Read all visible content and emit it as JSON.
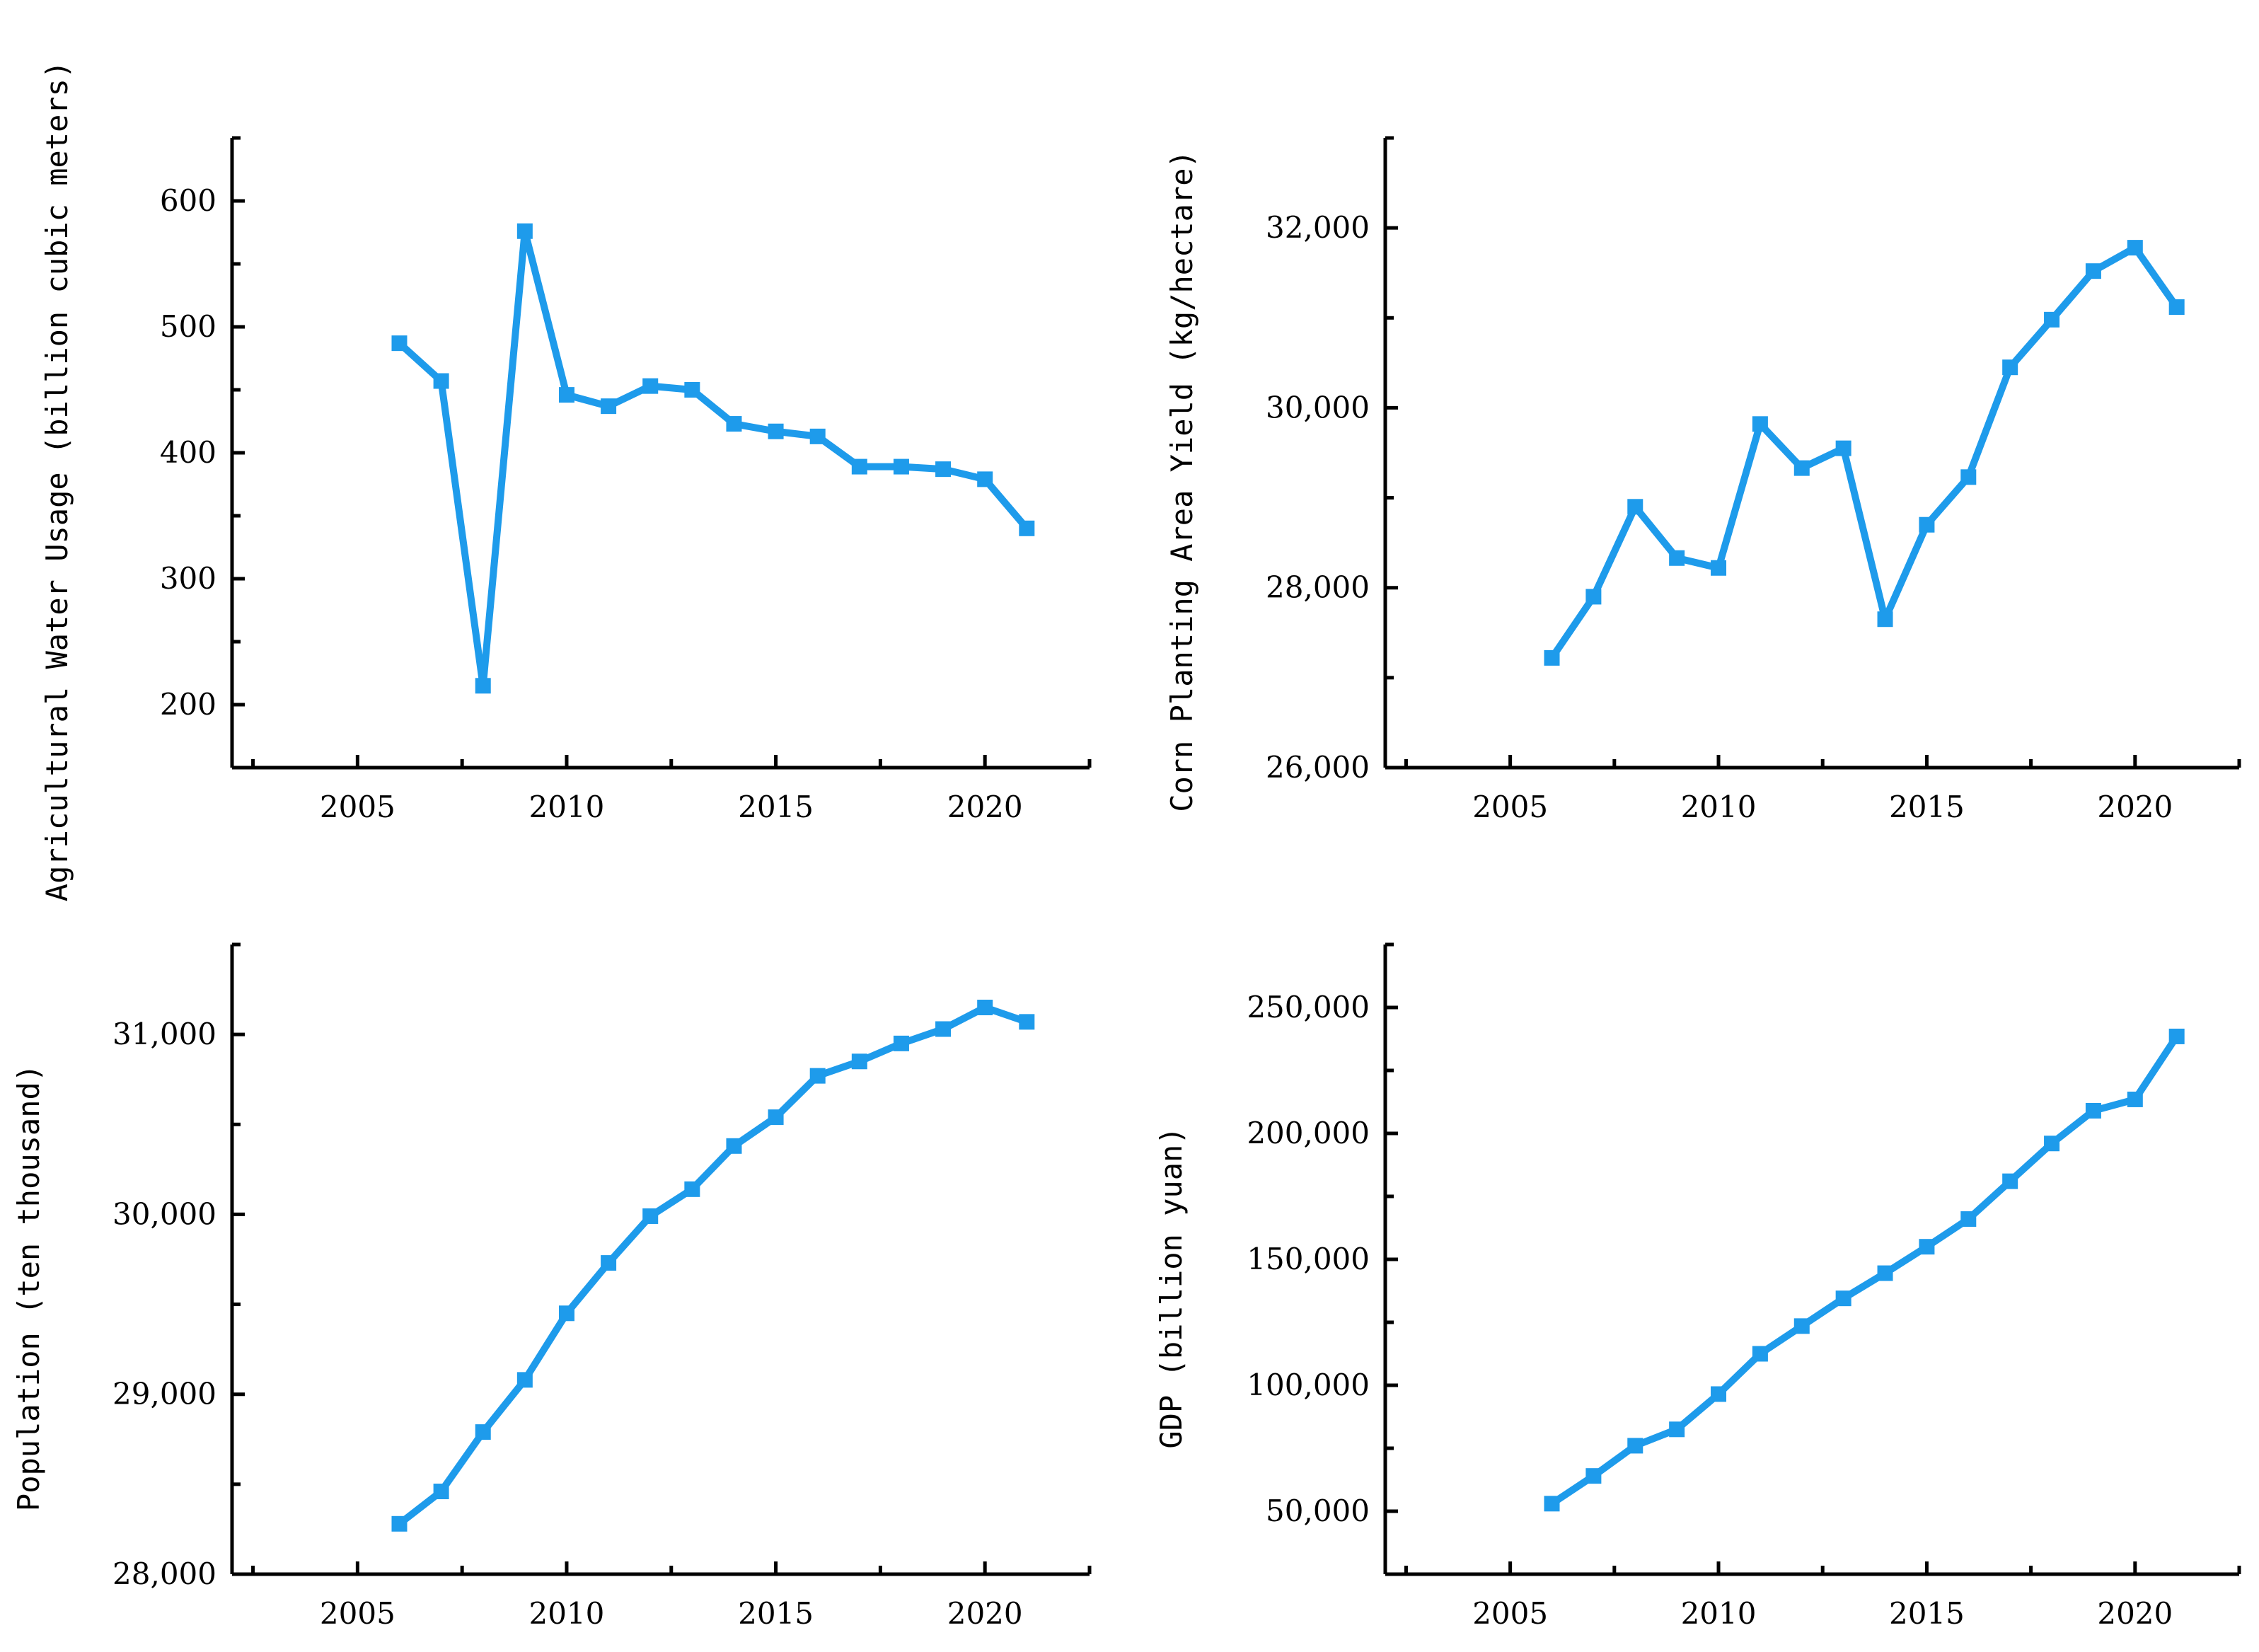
{
  "series_color": "#1E9BEB",
  "chart_data": [
    {
      "type": "line",
      "ylabel": "Agricultural Water Usage (billion cubic meters)",
      "xlabel": "",
      "xlim": [
        2002.0,
        2022.5
      ],
      "ylim": [
        150,
        650
      ],
      "x_ticks": [
        2005,
        2010,
        2015,
        2020
      ],
      "y_ticks": [
        200,
        300,
        400,
        500,
        600
      ],
      "y_tick_labels": [
        "200",
        "300",
        "400",
        "500",
        "600"
      ],
      "x": [
        2006,
        2007,
        2008,
        2009,
        2010,
        2011,
        2012,
        2013,
        2014,
        2015,
        2016,
        2017,
        2018,
        2019,
        2020,
        2021
      ],
      "series": [
        {
          "values": [
            487,
            457,
            215,
            576,
            446,
            437,
            453,
            450,
            423,
            417,
            413,
            389,
            389,
            387,
            379,
            340
          ]
        }
      ]
    },
    {
      "type": "line",
      "ylabel": "Corn Planting Area Yield (kg/hectare)",
      "xlabel": "",
      "xlim": [
        2002.0,
        2022.5
      ],
      "ylim": [
        26000,
        33000
      ],
      "x_ticks": [
        2005,
        2010,
        2015,
        2020
      ],
      "y_ticks": [
        26000,
        28000,
        30000,
        32000
      ],
      "y_tick_labels": [
        "26,000",
        "28,000",
        "30,000",
        "32,000"
      ],
      "x": [
        2006,
        2007,
        2008,
        2009,
        2010,
        2011,
        2012,
        2013,
        2014,
        2015,
        2016,
        2017,
        2018,
        2019,
        2020,
        2021
      ],
      "series": [
        {
          "values": [
            27220,
            27900,
            28900,
            28330,
            28220,
            29820,
            29330,
            29550,
            27650,
            28700,
            29230,
            30450,
            30980,
            31520,
            31780,
            31120
          ]
        }
      ]
    },
    {
      "type": "line",
      "ylabel": "Population (ten thousand)",
      "xlabel": "",
      "xlim": [
        2002.0,
        2022.5
      ],
      "ylim": [
        28000,
        31500
      ],
      "x_ticks": [
        2005,
        2010,
        2015,
        2020
      ],
      "y_ticks": [
        28000,
        29000,
        30000,
        31000
      ],
      "y_tick_labels": [
        "28,000",
        "29,000",
        "30,000",
        "31,000"
      ],
      "x": [
        2006,
        2007,
        2008,
        2009,
        2010,
        2011,
        2012,
        2013,
        2014,
        2015,
        2016,
        2017,
        2018,
        2019,
        2020,
        2021
      ],
      "series": [
        {
          "values": [
            28280,
            28460,
            28790,
            29080,
            29450,
            29730,
            29990,
            30140,
            30380,
            30540,
            30770,
            30850,
            30950,
            31030,
            31150,
            31070
          ]
        }
      ]
    },
    {
      "type": "line",
      "ylabel": "GDP (billion yuan)",
      "xlabel": "",
      "xlim": [
        2002.0,
        2022.5
      ],
      "ylim": [
        25000,
        275000
      ],
      "x_ticks": [
        2005,
        2010,
        2015,
        2020
      ],
      "y_ticks": [
        50000,
        100000,
        150000,
        200000,
        250000
      ],
      "y_tick_labels": [
        "50,000",
        "100,000",
        "150,000",
        "200,000",
        "250,000"
      ],
      "x": [
        2006,
        2007,
        2008,
        2009,
        2010,
        2011,
        2012,
        2013,
        2014,
        2015,
        2016,
        2017,
        2018,
        2019,
        2020,
        2021
      ],
      "series": [
        {
          "values": [
            53000,
            64000,
            76000,
            82500,
            96500,
            112500,
            123500,
            134500,
            144500,
            155000,
            166000,
            181000,
            196000,
            209000,
            213500,
            238500
          ]
        }
      ]
    }
  ]
}
